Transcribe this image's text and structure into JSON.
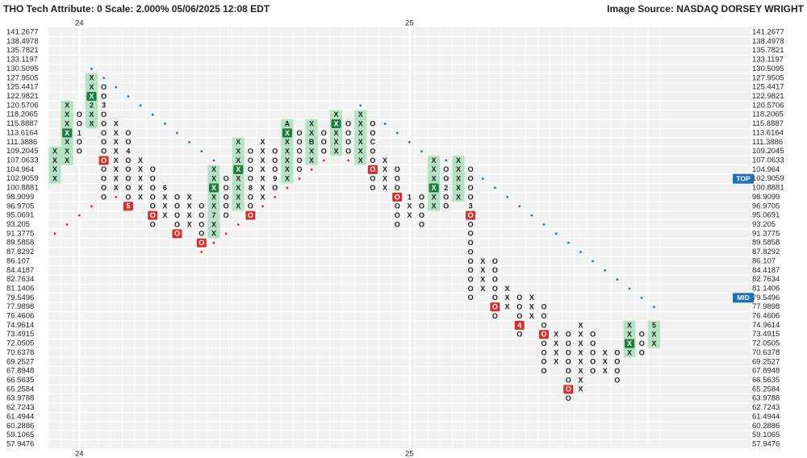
{
  "chart_data": {
    "type": "point-and-figure",
    "title": "THO Tech Attribute: 0 Scale: 2.000% 05/06/2025 12:08 EDT",
    "source": "Image Source: NASDAQ DORSEY WRIGHT",
    "x_color": "#1e7b3a",
    "o_color": "#d32f2f",
    "shade_color": "#b5e2c2",
    "support_color": "#d32f2f",
    "resistance_color": "#1f77b4",
    "marker_color": "#1f6fb2",
    "levels": [
      141.2677,
      138.4978,
      135.7821,
      133.1197,
      130.5095,
      127.9505,
      125.4417,
      122.9821,
      120.5706,
      118.2065,
      115.8887,
      113.6164,
      111.3886,
      109.2045,
      107.0633,
      104.964,
      102.9059,
      100.8881,
      98.9099,
      96.9705,
      95.0691,
      93.205,
      91.3775,
      89.5858,
      87.8292,
      86.107,
      84.4187,
      82.7634,
      81.1406,
      79.5496,
      77.9898,
      76.4606,
      74.9614,
      73.4915,
      72.0505,
      70.6378,
      69.2527,
      67.8948,
      66.5635,
      65.2584,
      63.9788,
      62.7243,
      61.4944,
      60.2886,
      59.1065,
      57.9476
    ],
    "markers": [
      {
        "label": "TOP",
        "price": 102.9059
      },
      {
        "label": "MID",
        "price": 79.5496
      }
    ],
    "columns": [
      {
        "type": "X",
        "high": 109.2045,
        "low": 102.9059,
        "shaded": true,
        "support": 91.3775
      },
      {
        "type": "X",
        "high": 120.5706,
        "low": 107.0633,
        "shaded": true,
        "specials": [
          {
            "price": 113.6164,
            "highlight": true
          }
        ],
        "support": 93.205
      },
      {
        "type": "O",
        "high": 118.2065,
        "low": 109.2045,
        "specials": [
          {
            "price": 113.6164,
            "label": "1"
          }
        ],
        "support": 95.0691,
        "year": "24"
      },
      {
        "type": "X",
        "high": 127.9505,
        "low": 115.8887,
        "shaded": true,
        "specials": [
          {
            "price": 122.9821,
            "highlight": true
          },
          {
            "price": 120.5706,
            "label": "2"
          }
        ],
        "support": 96.9705,
        "resistance": 130.5095
      },
      {
        "type": "O",
        "high": 125.4417,
        "low": 98.9099,
        "specials": [
          {
            "price": 120.5706,
            "label": "3"
          },
          {
            "price": 107.0633,
            "highlight": true
          }
        ],
        "resistance": 127.9505
      },
      {
        "type": "X",
        "high": 115.8887,
        "low": 100.8881,
        "support": 98.9099,
        "resistance": 125.4417
      },
      {
        "type": "O",
        "high": 113.6164,
        "low": 96.9705,
        "specials": [
          {
            "price": 109.2045,
            "label": "4"
          },
          {
            "price": 96.9705,
            "label": "5",
            "highlight": true
          }
        ],
        "resistance": 122.9821
      },
      {
        "type": "X",
        "high": 107.0633,
        "low": 98.9099,
        "resistance": 120.5706
      },
      {
        "type": "O",
        "high": 104.964,
        "low": 93.205,
        "specials": [
          {
            "price": 95.0691,
            "highlight": true
          }
        ],
        "resistance": 118.2065
      },
      {
        "type": "X",
        "high": 100.8881,
        "low": 95.0691,
        "specials": [
          {
            "price": 100.8881,
            "label": "6"
          }
        ],
        "resistance": 115.8887
      },
      {
        "type": "O",
        "high": 98.9099,
        "low": 91.3775,
        "specials": [
          {
            "price": 91.3775,
            "highlight": true
          }
        ],
        "resistance": 113.6164
      },
      {
        "type": "X",
        "high": 98.9099,
        "low": 93.205,
        "resistance": 111.3886
      },
      {
        "type": "O",
        "high": 96.9705,
        "low": 89.5858,
        "specials": [
          {
            "price": 89.5858,
            "highlight": true
          }
        ],
        "support": 87.8292,
        "resistance": 109.2045
      },
      {
        "type": "X",
        "high": 104.964,
        "low": 91.3775,
        "shaded": true,
        "specials": [
          {
            "price": 100.8881,
            "highlight": true
          },
          {
            "price": 95.0691,
            "label": "7"
          }
        ],
        "support": 89.5858,
        "resistance": 107.0633
      },
      {
        "type": "O",
        "high": 102.9059,
        "low": 95.0691,
        "support": 91.3775
      },
      {
        "type": "X",
        "high": 111.3886,
        "low": 96.9705,
        "shaded": true,
        "specials": [
          {
            "price": 104.964,
            "highlight": true
          }
        ],
        "support": 93.205
      },
      {
        "type": "O",
        "high": 109.2045,
        "low": 95.0691,
        "specials": [
          {
            "price": 100.8881,
            "label": "8"
          },
          {
            "price": 95.0691,
            "highlight": true
          }
        ]
      },
      {
        "type": "X",
        "high": 111.3886,
        "low": 98.9099,
        "support": 96.9705
      },
      {
        "type": "O",
        "high": 109.2045,
        "low": 100.8881,
        "specials": [
          {
            "price": 102.9059,
            "label": "9"
          }
        ],
        "support": 98.9099
      },
      {
        "type": "X",
        "high": 115.8887,
        "low": 102.9059,
        "shaded": true,
        "specials": [
          {
            "price": 115.8887,
            "label": "A"
          },
          {
            "price": 113.6164,
            "highlight": true
          }
        ],
        "support": 100.8881
      },
      {
        "type": "O",
        "high": 113.6164,
        "low": 104.964,
        "support": 102.9059
      },
      {
        "type": "X",
        "high": 115.8887,
        "low": 107.0633,
        "shaded": true,
        "specials": [
          {
            "price": 111.3886,
            "label": "B"
          }
        ],
        "support": 104.964
      },
      {
        "type": "O",
        "high": 113.6164,
        "low": 109.2045,
        "support": 107.0633
      },
      {
        "type": "X",
        "high": 118.2065,
        "low": 109.2045,
        "shaded": true,
        "specials": [
          {
            "price": 115.8887,
            "highlight": true
          }
        ]
      },
      {
        "type": "O",
        "high": 115.8887,
        "low": 109.2045,
        "support": 107.0633
      },
      {
        "type": "X",
        "high": 118.2065,
        "low": 107.0633,
        "shaded": true,
        "resistance": 120.5706
      },
      {
        "type": "O",
        "high": 115.8887,
        "low": 100.8881,
        "specials": [
          {
            "price": 111.3886,
            "label": "C"
          },
          {
            "price": 104.964,
            "highlight": true
          }
        ]
      },
      {
        "type": "X",
        "high": 107.0633,
        "low": 100.8881,
        "resistance": 115.8887
      },
      {
        "type": "O",
        "high": 104.964,
        "low": 93.205,
        "specials": [
          {
            "price": 98.9099,
            "highlight": true
          }
        ],
        "resistance": 113.6164
      },
      {
        "type": "X",
        "high": 98.9099,
        "low": 95.0691,
        "specials": [
          {
            "price": 98.9099,
            "label": "1"
          }
        ],
        "resistance": 111.3886,
        "year": "25"
      },
      {
        "type": "O",
        "high": 98.9099,
        "low": 93.205,
        "resistance": 109.2045
      },
      {
        "type": "X",
        "high": 107.0633,
        "low": 96.9705,
        "shaded": true,
        "specials": [
          {
            "price": 100.8881,
            "highlight": true
          }
        ]
      },
      {
        "type": "O",
        "high": 104.964,
        "low": 96.9705,
        "specials": [
          {
            "price": 100.8881,
            "label": "2"
          }
        ],
        "resistance": 107.0633
      },
      {
        "type": "X",
        "high": 107.0633,
        "low": 98.9099,
        "shaded": true
      },
      {
        "type": "O",
        "high": 104.964,
        "low": 79.5496,
        "specials": [
          {
            "price": 96.9705,
            "label": "3"
          },
          {
            "price": 95.0691,
            "highlight": true
          }
        ]
      },
      {
        "type": "X",
        "high": 86.107,
        "low": 81.1406,
        "resistance": 102.9059
      },
      {
        "type": "O",
        "high": 86.107,
        "low": 76.4606,
        "specials": [
          {
            "price": 77.9898,
            "highlight": true
          }
        ],
        "resistance": 100.8881
      },
      {
        "type": "X",
        "high": 81.1406,
        "low": 77.9898,
        "resistance": 98.9099
      },
      {
        "type": "O",
        "high": 79.5496,
        "low": 73.4915,
        "specials": [
          {
            "price": 74.9614,
            "label": "4",
            "highlight": true
          }
        ],
        "resistance": 96.9705
      },
      {
        "type": "X",
        "high": 79.5496,
        "low": 76.4606,
        "resistance": 95.0691
      },
      {
        "type": "O",
        "high": 77.9898,
        "low": 67.8948,
        "specials": [
          {
            "price": 73.4915,
            "highlight": true
          }
        ],
        "resistance": 93.205
      },
      {
        "type": "X",
        "high": 73.4915,
        "low": 69.2527,
        "resistance": 91.3775
      },
      {
        "type": "O",
        "high": 73.4915,
        "low": 63.9788,
        "specials": [
          {
            "price": 65.2584,
            "highlight": true
          }
        ],
        "resistance": 89.5858
      },
      {
        "type": "X",
        "high": 74.9614,
        "low": 65.2584,
        "resistance": 87.8292
      },
      {
        "type": "O",
        "high": 73.4915,
        "low": 67.8948,
        "resistance": 86.107
      },
      {
        "type": "X",
        "high": 70.6378,
        "low": 67.8948,
        "resistance": 84.4187
      },
      {
        "type": "O",
        "high": 70.6378,
        "low": 66.5635,
        "resistance": 82.7634
      },
      {
        "type": "X",
        "high": 74.9614,
        "low": 70.6378,
        "shaded": true,
        "specials": [
          {
            "price": 72.0505,
            "highlight": true
          }
        ],
        "resistance": 81.1406
      },
      {
        "type": "O",
        "high": 73.4915,
        "low": 70.6378,
        "resistance": 79.5496
      },
      {
        "type": "X",
        "high": 74.9614,
        "low": 72.0505,
        "shaded": true,
        "specials": [
          {
            "price": 74.9614,
            "label": "5"
          }
        ],
        "resistance": 77.9898
      }
    ]
  }
}
